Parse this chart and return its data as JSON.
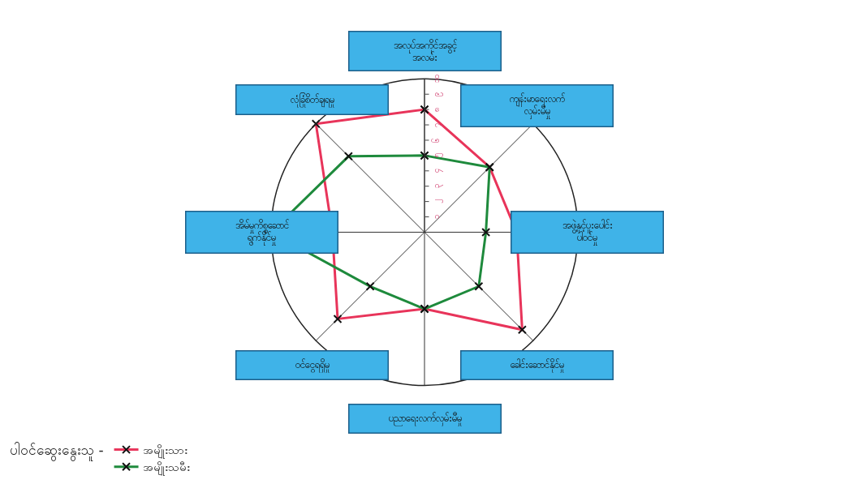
{
  "chart_data": {
    "type": "radar",
    "categories": [
      "အလုပ်အကိုင်အခွင့် အလမ်း",
      "ကျန်းမာရေးလက် လှမ်းမီမှု",
      "အဖွဲ့နှင့်ပူးပေါင်း ပါဝင်မှု",
      "ခေါင်းဆောင်နိုင်မှု",
      "ပညာရေးလက်လှမ်းမီမှု",
      "ဝင်ငွေရရှိမှု",
      "အိမ်မှုကိစ္စဆောင် ရွက်နိုင်မှု",
      "လုံခြုံစိတ်ချရမှု"
    ],
    "series": [
      {
        "name": "အမျိုးသား",
        "color": "#e8345a",
        "values": [
          8,
          6,
          6,
          9,
          5,
          8,
          6,
          10
        ]
      },
      {
        "name": "အမျိုးသမီး",
        "color": "#1e8a3c",
        "values": [
          5,
          6,
          4,
          5,
          5,
          5,
          10,
          7
        ]
      }
    ],
    "legend_title": "ပါဝင်ဆွေးနွေးသူ -",
    "ylim": [
      0,
      10
    ],
    "yticks": [
      {
        "value": 1,
        "label": "၁"
      },
      {
        "value": 2,
        "label": "၂"
      },
      {
        "value": 3,
        "label": "၃"
      },
      {
        "value": 4,
        "label": "၄"
      },
      {
        "value": 5,
        "label": "၅"
      },
      {
        "value": 6,
        "label": "၆"
      },
      {
        "value": 7,
        "label": "၇"
      },
      {
        "value": 8,
        "label": "၈"
      },
      {
        "value": 9,
        "label": "၉"
      },
      {
        "value": 10,
        "label": "၁၀"
      }
    ],
    "grid": "x",
    "legend": "bottom left",
    "marker": "cross",
    "line_style": "solid"
  }
}
